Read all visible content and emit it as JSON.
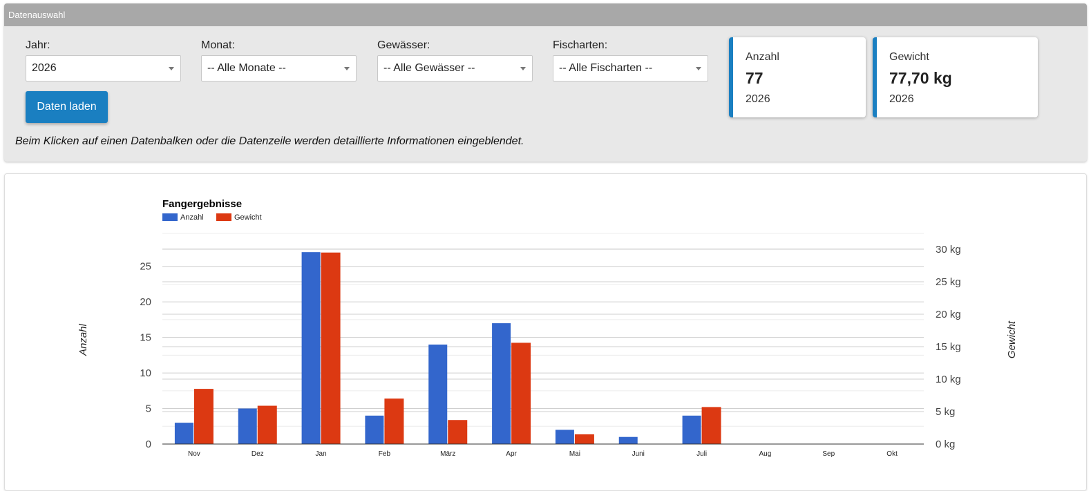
{
  "panel": {
    "title": "Datenauswahl",
    "filters": [
      {
        "label": "Jahr:",
        "value": "2026"
      },
      {
        "label": "Monat:",
        "value": "-- Alle Monate --"
      },
      {
        "label": "Gewässer:",
        "value": "-- Alle Gewässer --"
      },
      {
        "label": "Fischarten:",
        "value": "-- Alle Fischarten --"
      }
    ],
    "load_button": "Daten laden",
    "hint": "Beim Klicken auf einen Datenbalken oder die Datenzeile werden detaillierte Informationen eingeblendet."
  },
  "cards": [
    {
      "label": "Anzahl",
      "value": "77",
      "sub": "2026"
    },
    {
      "label": "Gewicht",
      "value": "77,70 kg",
      "sub": "2026"
    }
  ],
  "colors": {
    "accent": "#1a7fc1",
    "anzahl": "#3366cc",
    "gewicht": "#dc3912"
  },
  "chart_data": {
    "type": "bar",
    "title": "Fangergebnisse",
    "categories": [
      "Nov",
      "Dez",
      "Jan",
      "Feb",
      "März",
      "Apr",
      "Mai",
      "Juni",
      "Juli",
      "Aug",
      "Sep",
      "Okt"
    ],
    "series": [
      {
        "name": "Anzahl",
        "axis": "left",
        "values": [
          3,
          5,
          27,
          4,
          14,
          17,
          2,
          1,
          4,
          0,
          0,
          0
        ]
      },
      {
        "name": "Gewicht",
        "axis": "right",
        "values": [
          8.5,
          5.9,
          29.5,
          7.0,
          3.7,
          15.6,
          1.5,
          0,
          5.7,
          0,
          0,
          0
        ]
      }
    ],
    "ylabel_left": "Anzahl",
    "ylabel_right": "Gewicht",
    "yticks_left": [
      "0",
      "5",
      "10",
      "15",
      "20",
      "25"
    ],
    "ylim_left": [
      0,
      27.5
    ],
    "yticks_right": [
      "0 kg",
      "5 kg",
      "10 kg",
      "15 kg",
      "20 kg",
      "25 kg",
      "30 kg"
    ],
    "ylim_right": [
      0,
      30
    ],
    "legend": "top-left",
    "grid": true
  }
}
